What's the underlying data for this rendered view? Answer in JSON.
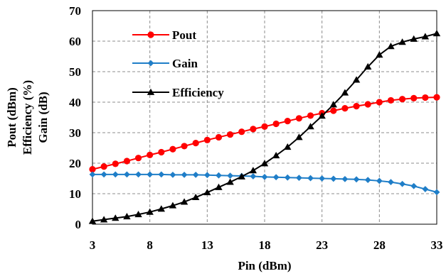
{
  "chart_data": {
    "type": "line",
    "title": "",
    "xlabel": "Pin (dBm)",
    "ylabel_lines": [
      "Pout (dBm)",
      "Efficiency (%)",
      "Gain (dB)"
    ],
    "xlim": [
      3,
      33
    ],
    "ylim": [
      0,
      70
    ],
    "x_ticks": [
      3,
      8,
      13,
      18,
      23,
      28,
      33
    ],
    "y_ticks": [
      0,
      10,
      20,
      30,
      40,
      50,
      60,
      70
    ],
    "grid": true,
    "legend_position": "upper-left",
    "x": [
      3,
      4,
      5,
      6,
      7,
      8,
      9,
      10,
      11,
      12,
      13,
      14,
      15,
      16,
      17,
      18,
      19,
      20,
      21,
      22,
      23,
      24,
      25,
      26,
      27,
      28,
      29,
      30,
      31,
      32,
      33
    ],
    "series": [
      {
        "name": "Pout",
        "color": "#ff0000",
        "marker": "circle",
        "values": [
          18.0,
          18.9,
          19.8,
          20.7,
          21.7,
          22.7,
          23.6,
          24.6,
          25.6,
          26.6,
          27.6,
          28.5,
          29.4,
          30.3,
          31.2,
          32.0,
          32.9,
          33.8,
          34.7,
          35.6,
          36.4,
          37.2,
          38.0,
          38.7,
          39.3,
          40.0,
          40.6,
          41.0,
          41.3,
          41.5,
          41.6
        ]
      },
      {
        "name": "Gain",
        "color": "#1f7ec8",
        "marker": "diamond",
        "values": [
          16.3,
          16.3,
          16.3,
          16.3,
          16.3,
          16.3,
          16.3,
          16.2,
          16.2,
          16.2,
          16.1,
          16.0,
          15.9,
          15.8,
          15.7,
          15.5,
          15.4,
          15.3,
          15.2,
          15.1,
          15.0,
          14.9,
          14.8,
          14.7,
          14.5,
          14.2,
          13.8,
          13.2,
          12.5,
          11.5,
          10.5
        ]
      },
      {
        "name": "Efficiency",
        "color": "#000000",
        "marker": "triangle",
        "values": [
          1.0,
          1.5,
          2.0,
          2.5,
          3.2,
          4.0,
          5.0,
          6.1,
          7.3,
          8.8,
          10.4,
          12.1,
          13.8,
          15.6,
          17.6,
          19.9,
          22.5,
          25.3,
          28.5,
          32.0,
          35.5,
          39.2,
          43.1,
          47.3,
          51.6,
          55.5,
          58.3,
          59.7,
          60.7,
          61.5,
          62.5
        ]
      }
    ]
  }
}
